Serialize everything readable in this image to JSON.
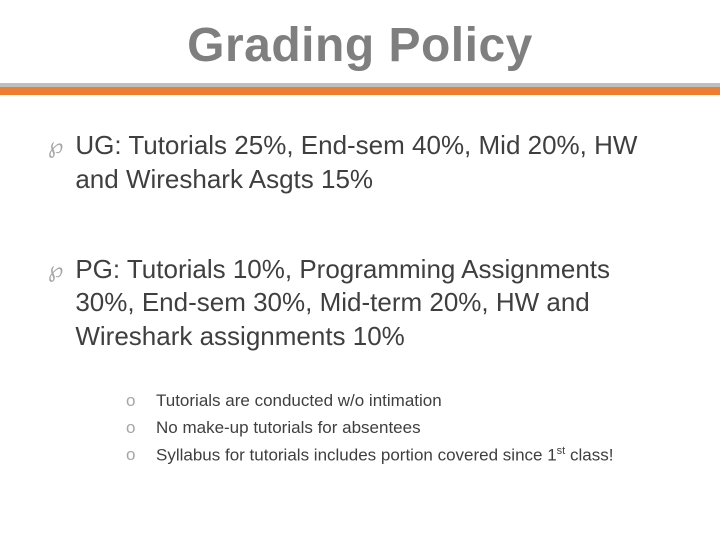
{
  "title": "Grading Policy",
  "colors": {
    "title_text": "#7f7f7f",
    "title_shadow": "#d9d9d9",
    "rule_top": "#bfbfbf",
    "rule_accent": "#ed7d31",
    "body_text": "#3f3f3f",
    "bullet_color": "#a5a5a5",
    "background": "#ffffff"
  },
  "typography": {
    "title_fontsize": 48,
    "main_fontsize": 26,
    "sub_fontsize": 17
  },
  "main_items": [
    {
      "bullet": "",
      "text": "UG: Tutorials 25%,  End-sem 40%, Mid 20%, HW and Wireshark Asgts 15%"
    },
    {
      "bullet": "",
      "text": "PG:  Tutorials 10%, Programming Assignments 30%, End-sem 30%, Mid-term 20%, HW and Wireshark assignments 10%"
    }
  ],
  "sub_items": [
    {
      "bullet": "o",
      "text": "Tutorials are conducted w/o intimation"
    },
    {
      "bullet": "o",
      "text": "No make-up tutorials for absentees"
    },
    {
      "bullet": "o",
      "text_prefix": "Syllabus for tutorials includes portion covered since 1",
      "sup": "st",
      "text_suffix": " class!"
    }
  ]
}
